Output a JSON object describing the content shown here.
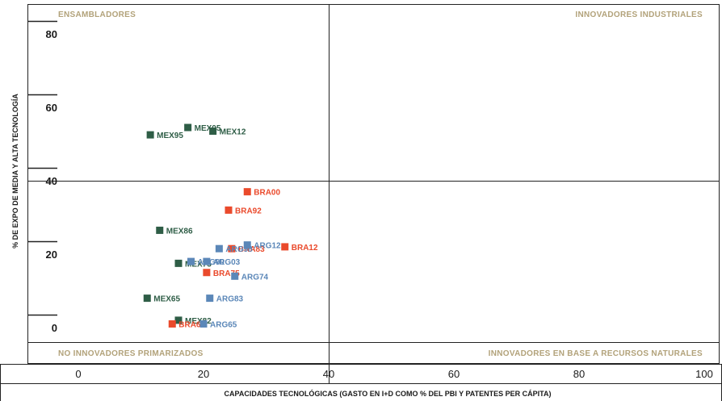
{
  "chart_data": {
    "type": "scatter",
    "xlabel": "CAPACIDADES TECNOLÓGICAS (GASTO EN I+D COMO % DEL PBI Y PATENTES PER CÁPITA)",
    "ylabel": "% DE EXPO DE MEDIA Y ALTA TECNOLOGÍA",
    "xlim": [
      -10,
      100
    ],
    "ylim": [
      -5,
      85
    ],
    "x_ticks": [
      "0",
      "20",
      "40",
      "60",
      "80",
      "100"
    ],
    "y_ticks": [
      "0",
      "20",
      "40",
      "60",
      "80"
    ],
    "grid": false,
    "dividers": {
      "x": 40,
      "y": 40
    },
    "quadrants": {
      "top_left": "ENSAMBLADORES",
      "top_right": "INNOVADORES INDUSTRIALES",
      "bottom_left": "NO INNOVADORES PRIMARIZADOS",
      "bottom_right": "INNOVADORES EN BASE A RECURSOS NATURALES"
    },
    "colors": {
      "MEX": "#2e5d46",
      "BRA": "#ea4a2c",
      "ARG": "#5b87b8"
    },
    "points": [
      {
        "label": "MEX05",
        "group": "MEX",
        "x": 17.5,
        "y": 54.5
      },
      {
        "label": "MEX12",
        "group": "MEX",
        "x": 21.5,
        "y": 53.5
      },
      {
        "label": "MEX95",
        "group": "MEX",
        "x": 11.5,
        "y": 52.5
      },
      {
        "label": "MEX86",
        "group": "MEX",
        "x": 13.0,
        "y": 26.5
      },
      {
        "label": "MEX75",
        "group": "MEX",
        "x": 16.0,
        "y": 17.5
      },
      {
        "label": "MEX65",
        "group": "MEX",
        "x": 11.0,
        "y": 8.0
      },
      {
        "label": "MEX82",
        "group": "MEX",
        "x": 16.0,
        "y": 2.0
      },
      {
        "label": "BRA00",
        "group": "BRA",
        "x": 27.0,
        "y": 37.0
      },
      {
        "label": "BRA92",
        "group": "BRA",
        "x": 24.0,
        "y": 32.0
      },
      {
        "label": "BRA83",
        "group": "BRA",
        "x": 24.5,
        "y": 21.5
      },
      {
        "label": "BRA12",
        "group": "BRA",
        "x": 33.0,
        "y": 22.0
      },
      {
        "label": "BRA75",
        "group": "BRA",
        "x": 20.5,
        "y": 15.0
      },
      {
        "label": "BRA65",
        "group": "BRA",
        "x": 15.0,
        "y": 1.0
      },
      {
        "label": "ARG98",
        "group": "ARG",
        "x": 22.5,
        "y": 21.5
      },
      {
        "label": "ARG12",
        "group": "ARG",
        "x": 27.0,
        "y": 22.5
      },
      {
        "label": "ARG90",
        "group": "ARG",
        "x": 18.0,
        "y": 18.0
      },
      {
        "label": "ARG03",
        "group": "ARG",
        "x": 20.5,
        "y": 18.0
      },
      {
        "label": "ARG74",
        "group": "ARG",
        "x": 25.0,
        "y": 14.0
      },
      {
        "label": "ARG83",
        "group": "ARG",
        "x": 21.0,
        "y": 8.0
      },
      {
        "label": "ARG65",
        "group": "ARG",
        "x": 20.0,
        "y": 1.0
      }
    ]
  }
}
